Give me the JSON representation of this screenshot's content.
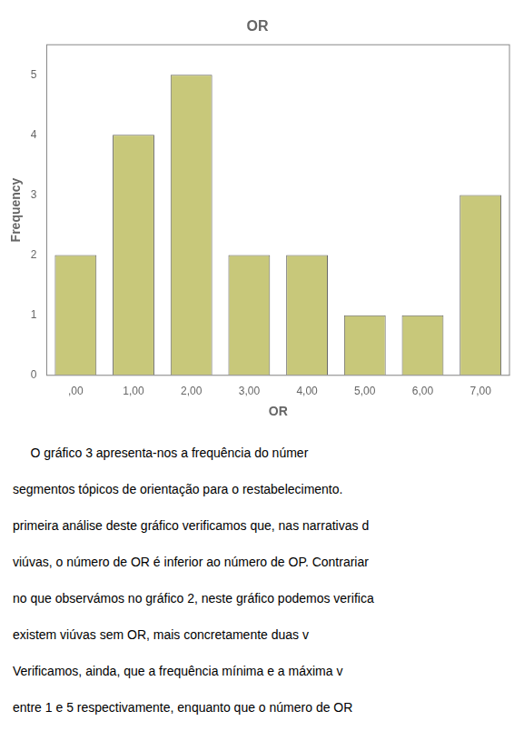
{
  "chart_data": {
    "type": "bar",
    "title": "OR",
    "x_label": "OR",
    "y_label": "Frequency",
    "categories": [
      ",00",
      "1,00",
      "2,00",
      "3,00",
      "4,00",
      "5,00",
      "6,00",
      "7,00"
    ],
    "values": [
      2,
      4,
      5,
      2,
      2,
      1,
      1,
      3
    ],
    "color": "#c8c87a",
    "ylim": [
      0,
      5.5
    ],
    "yticks": [
      0,
      1,
      2,
      3,
      4,
      5
    ],
    "grid": false,
    "annotations": [
      "     O gráfico 3 apresenta-nos a frequência do númer",
      "segmentos tópicos de orientação para o restabelecimento.",
      "primeira análise deste gráfico verificamos que, nas narrativas d",
      "viúvas, o número de OR é inferior ao número de OP. Contrariar",
      "no que observámos no gráfico 2, neste gráfico podemos verifica",
      "existem viúvas sem OR, mais concretamente duas v",
      "Verificamos, ainda, que a frequência mínima e a máxima v",
      "entre 1 e 5 respectivamente, enquanto que o número de OR"
    ]
  }
}
